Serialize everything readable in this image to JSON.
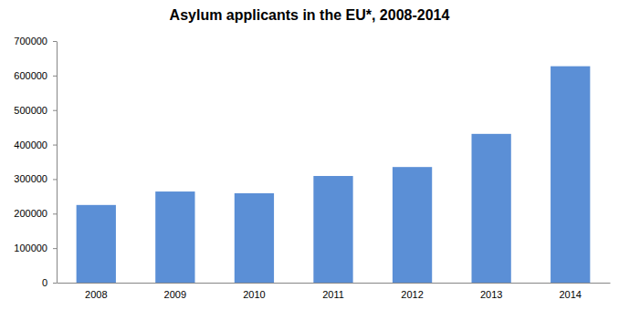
{
  "chart_data": {
    "type": "bar",
    "title": "Asylum applicants in the EU*, 2008-2014",
    "categories": [
      "2008",
      "2009",
      "2010",
      "2011",
      "2012",
      "2013",
      "2014"
    ],
    "values": [
      225000,
      264000,
      259000,
      309000,
      335000,
      431000,
      627000
    ],
    "color": "#5b8fd6",
    "ylim": [
      0,
      700000
    ],
    "yticks": [
      0,
      100000,
      200000,
      300000,
      400000,
      500000,
      600000,
      700000
    ],
    "grid": false
  }
}
